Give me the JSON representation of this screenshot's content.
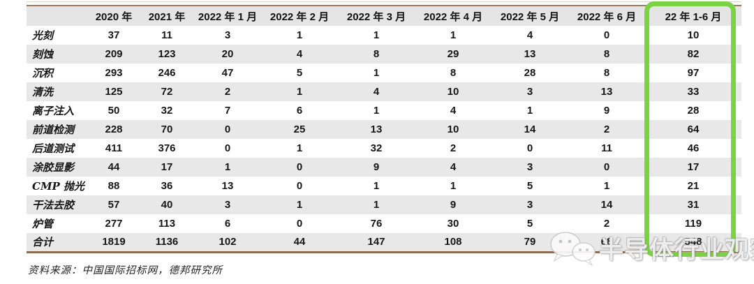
{
  "chart_data": {
    "type": "table",
    "columns": [
      "",
      "2020 年",
      "2021 年",
      "2022 年 1 月",
      "2022 年 2 月",
      "2022 年 3 月",
      "2022 年 4 月",
      "2022 年 5 月",
      "2022 年 6 月",
      "22 年 1-6 月"
    ],
    "rows": [
      {
        "label": "光刻",
        "values": [
          "37",
          "11",
          "3",
          "1",
          "1",
          "1",
          "4",
          "0",
          "10"
        ]
      },
      {
        "label": "刻蚀",
        "values": [
          "209",
          "123",
          "20",
          "4",
          "8",
          "29",
          "13",
          "8",
          "82"
        ]
      },
      {
        "label": "沉积",
        "values": [
          "293",
          "246",
          "47",
          "5",
          "1",
          "8",
          "28",
          "8",
          "97"
        ]
      },
      {
        "label": "清洗",
        "values": [
          "125",
          "72",
          "2",
          "1",
          "4",
          "10",
          "3",
          "13",
          "33"
        ]
      },
      {
        "label": "离子注入",
        "values": [
          "50",
          "32",
          "7",
          "6",
          "1",
          "4",
          "1",
          "9",
          "28"
        ]
      },
      {
        "label": "前道检测",
        "values": [
          "228",
          "70",
          "0",
          "25",
          "13",
          "10",
          "14",
          "2",
          "64"
        ]
      },
      {
        "label": "后道测试",
        "values": [
          "411",
          "376",
          "0",
          "1",
          "32",
          "2",
          "0",
          "11",
          "46"
        ]
      },
      {
        "label": "涂胶显影",
        "values": [
          "44",
          "17",
          "1",
          "0",
          "9",
          "4",
          "3",
          "0",
          "17"
        ]
      },
      {
        "label": "CMP 抛光",
        "values": [
          "88",
          "36",
          "13",
          "0",
          "1",
          "1",
          "5",
          "1",
          "21"
        ]
      },
      {
        "label": "干法去胶",
        "values": [
          "57",
          "40",
          "3",
          "1",
          "1",
          "9",
          "3",
          "14",
          "31"
        ]
      },
      {
        "label": "炉管",
        "values": [
          "277",
          "113",
          "6",
          "0",
          "76",
          "30",
          "5",
          "2",
          "119"
        ]
      },
      {
        "label": "合计",
        "values": [
          "1819",
          "1136",
          "102",
          "44",
          "147",
          "108",
          "79",
          "68",
          "548"
        ]
      }
    ],
    "highlight_column": "22 年 1-6 月",
    "source_note": "资料来源：中国国际招标网，德邦研究所",
    "legend_position": "none",
    "grid": "row-stripes"
  },
  "watermark": {
    "icon": "wechat-icon",
    "text": "半导体行业观察"
  },
  "colors": {
    "stripe": "#e8e8e8",
    "header_bg": "#e5e5e5",
    "rule_brown_top": "#9b7a5f",
    "rule_brown_bottom": "#8e6c51",
    "highlight_green": "#7bd244"
  }
}
